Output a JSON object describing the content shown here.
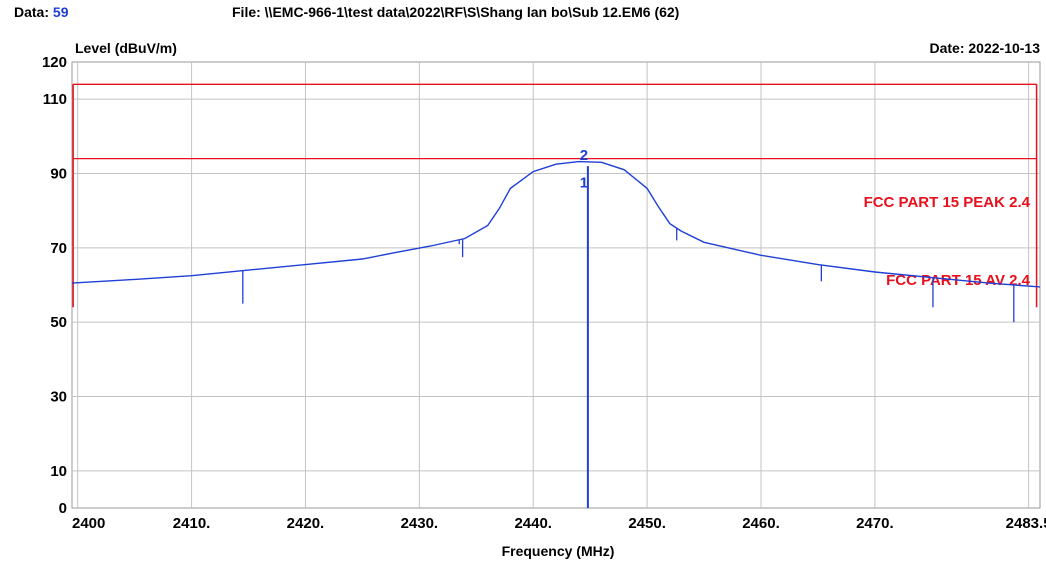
{
  "header": {
    "data_label": "Data:",
    "data_value": "59",
    "file_text": "File: \\\\EMC-966-1\\test data\\2022\\RF\\S\\Shang lan bo\\Sub 12.EM6  (62)",
    "date_text": "Date: 2022-10-13"
  },
  "chart_data": {
    "type": "line",
    "ylabel": "Level (dBuV/m)",
    "xlabel": "Frequency (MHz)",
    "xlim": [
      2399.5,
      2484.5
    ],
    "ylim": [
      0,
      120
    ],
    "x_ticks": [
      {
        "value": 2400,
        "label": "2400"
      },
      {
        "value": 2410,
        "label": "2410."
      },
      {
        "value": 2420,
        "label": "2420."
      },
      {
        "value": 2430,
        "label": "2430."
      },
      {
        "value": 2440,
        "label": "2440."
      },
      {
        "value": 2450,
        "label": "2450."
      },
      {
        "value": 2460,
        "label": "2460."
      },
      {
        "value": 2470,
        "label": "2470."
      },
      {
        "value": 2483.5,
        "label": "2483.5"
      }
    ],
    "y_ticks": [
      {
        "value": 120,
        "label": "120"
      },
      {
        "value": 110,
        "label": "110"
      },
      {
        "value": 90,
        "label": "90"
      },
      {
        "value": 70,
        "label": "70"
      },
      {
        "value": 50,
        "label": "50"
      },
      {
        "value": 30,
        "label": "30"
      },
      {
        "value": 10,
        "label": "10"
      },
      {
        "value": 0,
        "label": "0"
      }
    ],
    "grid": true,
    "limits": [
      {
        "name": "FCC PART 15 PEAK 2.4",
        "value": 114,
        "color": "#e8101c"
      },
      {
        "name": "FCC PART 15 AV 2.4",
        "value": 94,
        "color": "#e8101c"
      }
    ],
    "series": [
      {
        "color": "#1f3fd6",
        "x": [
          2399.5,
          2405,
          2410,
          2415,
          2420,
          2425,
          2428,
          2431,
          2434,
          2436,
          2437,
          2438,
          2440,
          2442,
          2444,
          2446,
          2448,
          2450,
          2451,
          2452,
          2453,
          2455,
          2460,
          2465,
          2470,
          2475,
          2480,
          2484.5
        ],
        "y": [
          60.5,
          61.5,
          62.5,
          64,
          65.5,
          67,
          68.8,
          70.5,
          72.5,
          76,
          80.5,
          86,
          90.5,
          92.5,
          93.2,
          93,
          91,
          86,
          81,
          76.5,
          74.5,
          71.5,
          68,
          65.5,
          63.5,
          62,
          60.5,
          59.5
        ]
      }
    ],
    "spikes": [
      {
        "x": 2414.5,
        "low": 55
      },
      {
        "x": 2433.5,
        "low": 71
      },
      {
        "x": 2433.8,
        "low": 67.5
      },
      {
        "x": 2452.6,
        "low": 72
      },
      {
        "x": 2465.3,
        "low": 61
      },
      {
        "x": 2475.1,
        "low": 54
      },
      {
        "x": 2482.2,
        "low": 50
      }
    ],
    "markers": [
      {
        "label": "1",
        "x": 2444.8,
        "y": 90
      },
      {
        "label": "2",
        "x": 2444.8,
        "y": 93.6
      }
    ],
    "marker_line": {
      "x": 2444.8,
      "from": 0,
      "to": 92
    }
  }
}
